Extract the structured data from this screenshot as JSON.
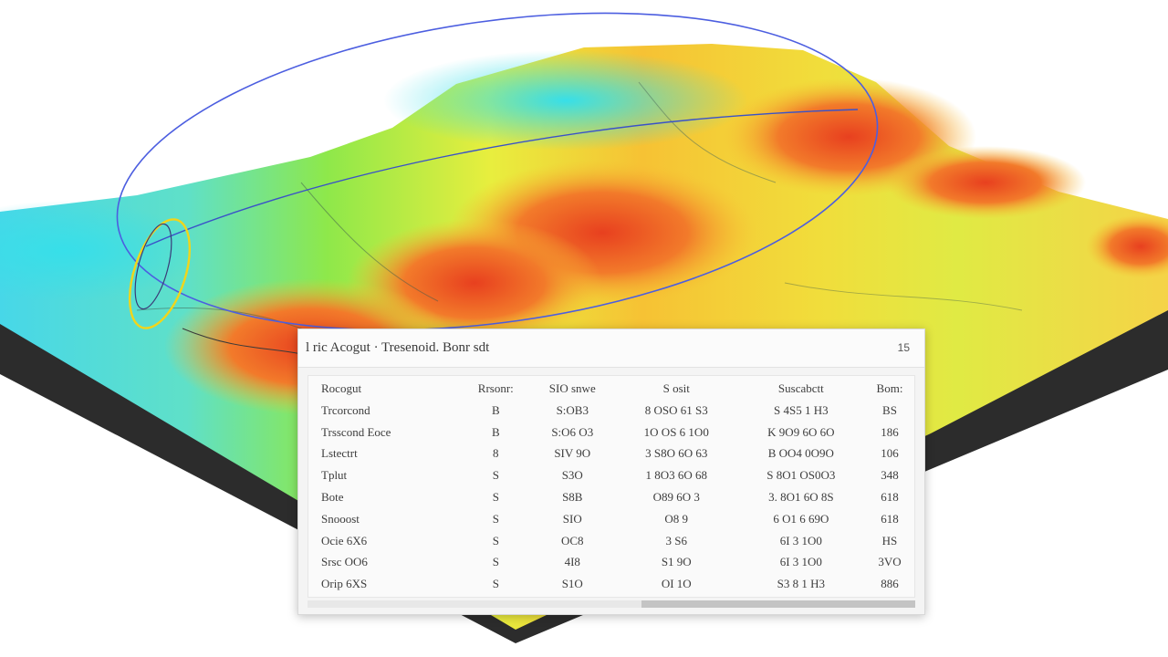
{
  "dialog": {
    "title": "l ric Acogut · Tresenoid. Bonr sdt",
    "close_label": "15",
    "columns": [
      "Rocogut",
      "Rrsonr:",
      "SIO snwe",
      "S osit",
      "Suscabctt",
      "Bom:"
    ],
    "rows": [
      [
        "Trcorcond",
        "B",
        "S:OB3",
        "8 OSO 61 S3",
        "S 4S5 1 H3",
        "BS"
      ],
      [
        "Trsscond Eoce",
        "B",
        "S:O6 O3",
        "1O OS 6 1O0",
        "K 9O9 6O 6O",
        "186"
      ],
      [
        "Lstectrt",
        "8",
        "SIV 9O",
        "3 S8O 6O 63",
        "B OO4 0O9O",
        "106"
      ],
      [
        "Tplut",
        "S",
        "S3O",
        "1 8O3 6O 68",
        "S 8O1 OS0O3",
        "348"
      ],
      [
        "Bote",
        "S",
        "S8B",
        "O89 6O 3",
        "3. 8O1 6O 8S",
        "618"
      ],
      [
        "Snooost",
        "S",
        "SIO",
        "O8 9",
        "6 O1 6 69O",
        "618"
      ],
      [
        "Ocie 6X6",
        "S",
        "OC8",
        "3 S6",
        "6I 3 1O0",
        "HS"
      ],
      [
        "Srsc OO6",
        "S",
        "4I8",
        "S1 9O",
        "6I 3 1O0",
        "3VO"
      ],
      [
        "Orip 6XS",
        "S",
        "S1O",
        "OI 1O",
        "S3 8 1 H3",
        "886"
      ]
    ]
  }
}
